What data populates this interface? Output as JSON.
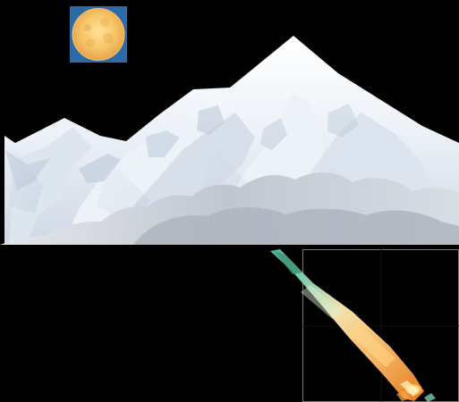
{
  "scene": {
    "background": "#000000",
    "icons": {
      "moon": "moon-icon",
      "mountain": "mountain-range-image",
      "meteor": "meteor-image",
      "panel": "grid-panel"
    },
    "colors": {
      "moon_bg": "#2f6aa8",
      "moon_core": "#f8c86a",
      "snow_light": "#f6f8fc",
      "snow_mid": "#d9e2ef",
      "snow_shadow": "#a8b6c8",
      "cloud": "#b6bcc6",
      "meteor_teal": "#5db89d",
      "meteor_orange": "#f39a39",
      "meteor_yellow": "#ffe7a0",
      "panel_border": "#7a7a7a",
      "panel_grid": "#111111"
    }
  }
}
